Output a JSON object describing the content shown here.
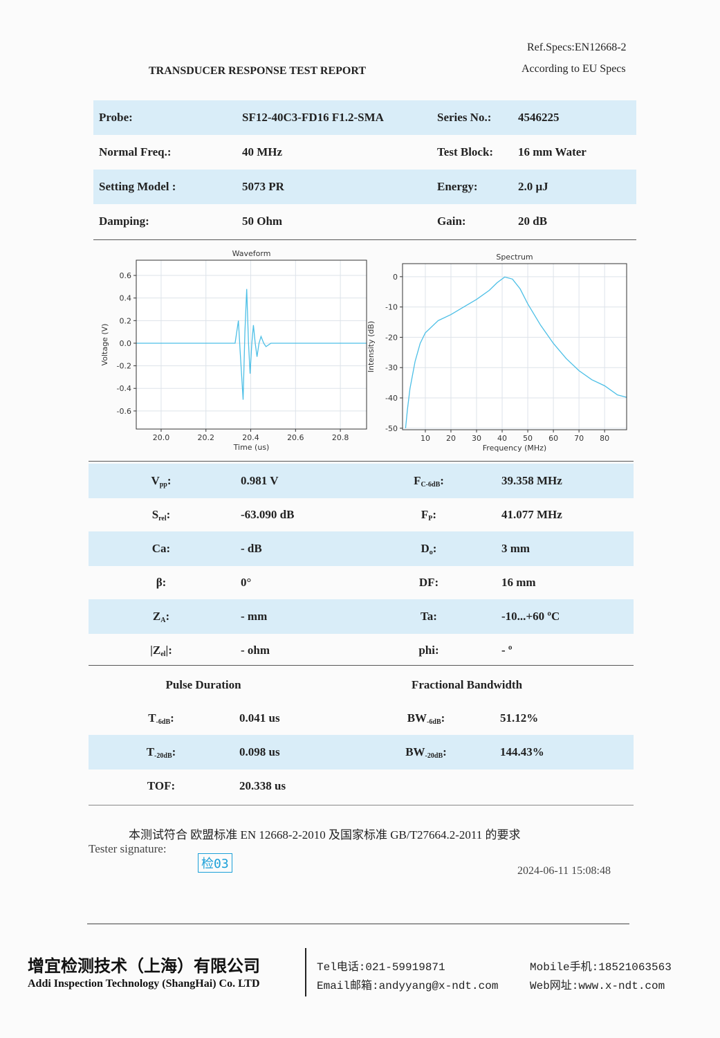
{
  "header": {
    "ref_specs": "Ref.Specs:EN12668-2",
    "according": "According to EU Specs",
    "title": "TRANSDUCER RESPONSE TEST REPORT"
  },
  "info": {
    "rows": [
      [
        "Probe:",
        "SF12-40C3-FD16 F1.2-SMA",
        "Series No.:",
        "4546225"
      ],
      [
        "Normal Freq.:",
        "40 MHz",
        "Test Block:",
        "16 mm Water"
      ],
      [
        "Setting Model :",
        "5073 PR",
        "Energy:",
        "2.0 μJ"
      ],
      [
        "Damping:",
        "50 Ohm",
        "Gain:",
        "20 dB"
      ]
    ]
  },
  "chart_data": [
    {
      "type": "line",
      "title": "Waveform",
      "x_label": "Time (us)",
      "y_label": "Voltage (V)",
      "color": "#4cbfe6",
      "grid": true,
      "x": [
        19.889,
        20.33,
        20.345,
        20.352,
        20.366,
        20.374,
        20.382,
        20.39,
        20.397,
        20.405,
        20.412,
        20.42,
        20.428,
        20.437,
        20.446,
        20.458,
        20.468,
        20.49,
        20.917
      ],
      "values": [
        0,
        0,
        0.2,
        -0.05,
        -0.5,
        0.1,
        0.48,
        0,
        -0.27,
        0,
        0.16,
        0,
        -0.12,
        0,
        0.06,
        0,
        -0.03,
        0,
        0
      ],
      "xlim": [
        19.889,
        20.917
      ],
      "xticks": [
        {
          "value": 20,
          "label": "20.0"
        },
        20.2,
        20.4,
        20.6,
        20.8
      ],
      "ylim": [
        -0.76,
        0.735
      ],
      "yticks": [
        0.6,
        0.4,
        0.2,
        {
          "value": 0,
          "label": "0.0"
        },
        -0.2,
        -0.4,
        -0.6
      ]
    },
    {
      "type": "line",
      "title": "Spectrum",
      "x_label": "Frequency (MHz)",
      "y_label": "Intensity (dB)",
      "color": "#4cbfe6",
      "grid": true,
      "x": [
        2.3,
        3,
        4,
        6,
        8,
        10,
        15,
        20,
        25,
        30,
        35,
        38,
        41,
        44,
        47,
        50,
        55,
        60,
        65,
        70,
        75,
        80,
        85,
        88.6
      ],
      "values": [
        -50,
        -44,
        -37,
        -28,
        -22,
        -18.5,
        -14.5,
        -12.5,
        -10,
        -7.5,
        -4.5,
        -2,
        -0.1,
        -0.8,
        -4,
        -9,
        -16,
        -22,
        -27,
        -31,
        -34,
        -36,
        -39,
        -39.8
      ],
      "xlim": [
        1.1,
        88.6
      ],
      "xticks": [
        10,
        20,
        30,
        40,
        50,
        60,
        70,
        80
      ],
      "ylim": [
        -50.5,
        4.3
      ],
      "yticks": [
        0,
        -10,
        -20,
        -30,
        -40,
        -50
      ]
    }
  ],
  "params": {
    "rows": [
      [
        {
          "base": "V",
          "sub": "pp",
          "tail": ":"
        },
        "0.981 V",
        {
          "base": "F",
          "sub": "C-6dB",
          "tail": ":"
        },
        "39.358 MHz"
      ],
      [
        {
          "base": "S",
          "sub": "rel",
          "tail": ":"
        },
        "-63.090 dB",
        {
          "base": "F",
          "sub": "P",
          "tail": ":"
        },
        "41.077 MHz"
      ],
      [
        "Ca:",
        "- dB",
        {
          "base": "D",
          "sub": "o",
          "tail": ":"
        },
        "3 mm"
      ],
      [
        "β:",
        "0°",
        "DF:",
        "16 mm"
      ],
      [
        {
          "base": "Z",
          "sub": "A",
          "tail": ":"
        },
        "- mm",
        "Ta:",
        "-10...+60 ºC"
      ],
      [
        {
          "base": "|Z",
          "sub": "el",
          "tail": "|:"
        },
        "- ohm",
        "phi:",
        "- º"
      ]
    ]
  },
  "pulse": {
    "headers": [
      "Pulse Duration",
      "Fractional Bandwidth"
    ],
    "rows": [
      [
        {
          "base": "T",
          "sub": "-6dB",
          "tail": ":"
        },
        "0.041 us",
        {
          "base": "BW",
          "sub": "-6dB",
          "tail": ":"
        },
        "51.12%"
      ],
      [
        {
          "base": "T",
          "sub": "-20dB",
          "tail": ":"
        },
        "0.098 us",
        {
          "base": "BW",
          "sub": "-20dB",
          "tail": ":"
        },
        "144.43%"
      ],
      [
        "TOF:",
        "20.338 us"
      ]
    ]
  },
  "footer": {
    "compliance": "本测试符合 欧盟标准 EN 12668-2-2010 及国家标准 GB/T27664.2-2011 的要求",
    "signature_label": "Tester signature:",
    "stamp": "检03",
    "date": "2024-06-11 15:08:48",
    "company_cn": "增宜检测技术（上海）有限公司",
    "company_en": "Addi Inspection Technology (ShangHai) Co. LTD",
    "tel": "Tel电话:021-59919871",
    "email": "Email邮箱:andyyang@x-ndt.com",
    "mobile": "Mobile手机:18521063563",
    "web": "Web网址:www.x-ndt.com"
  }
}
